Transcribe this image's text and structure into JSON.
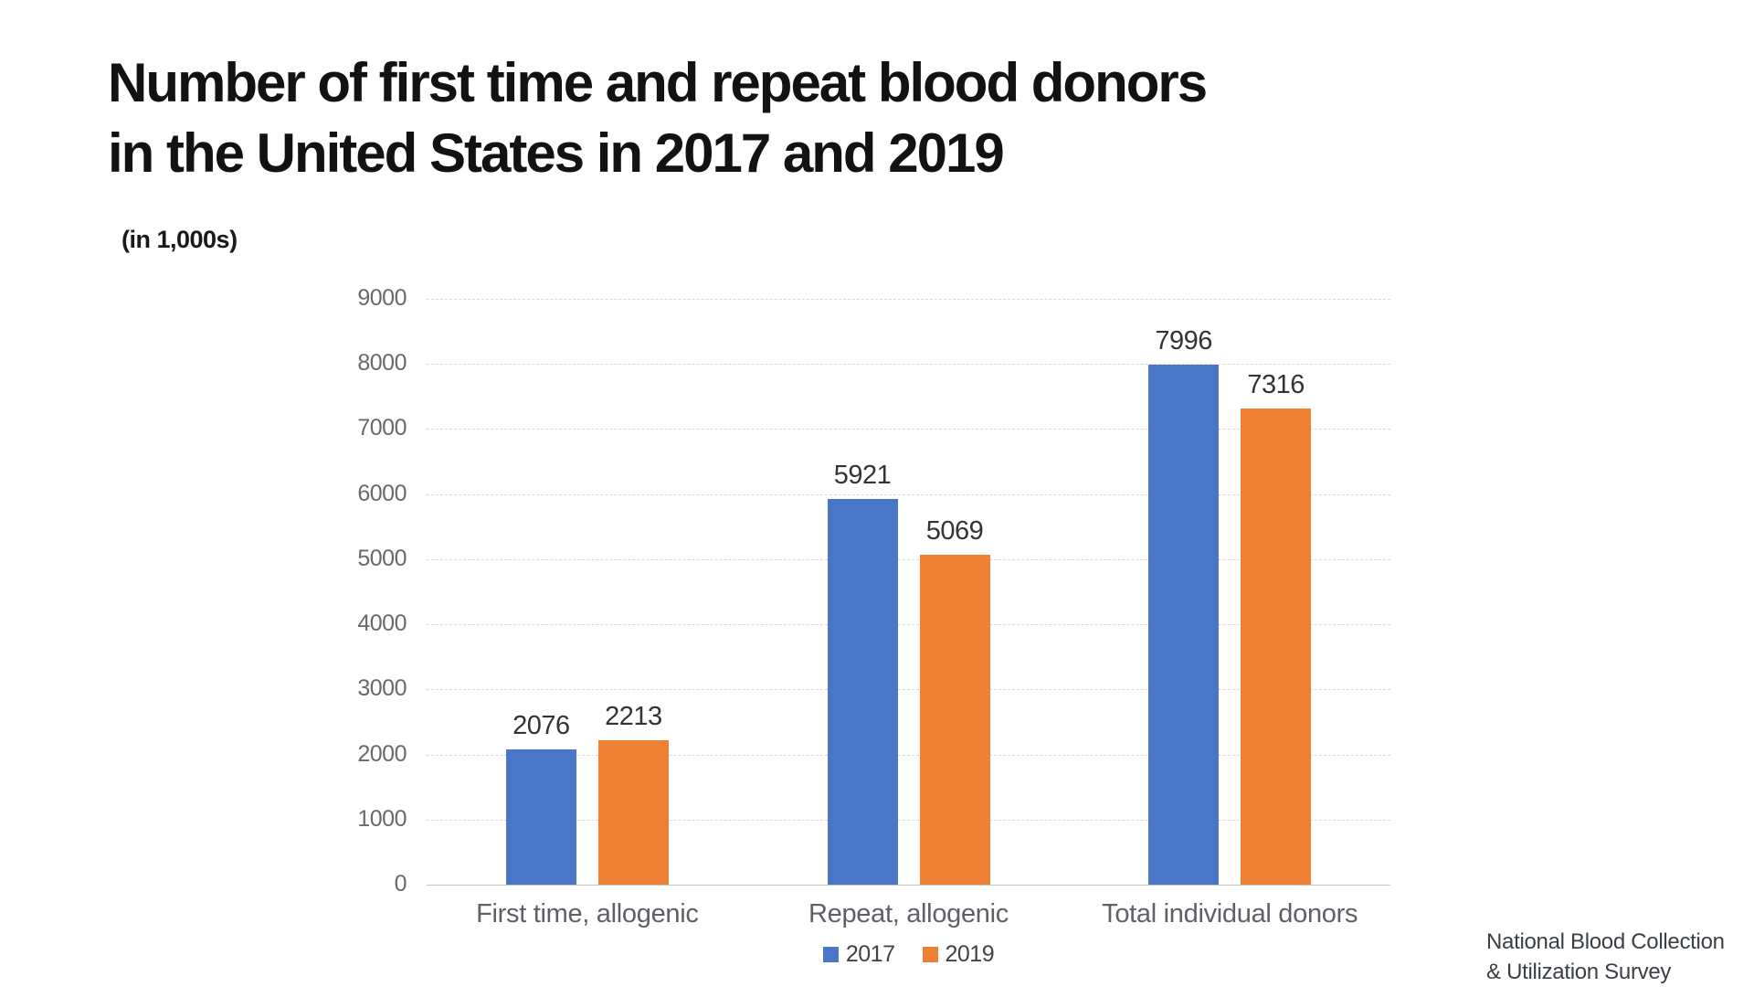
{
  "page": {
    "title_line1": "Number of first time and repeat blood donors",
    "title_line2": "in the United States in 2017 and 2019",
    "subtitle": "(in 1,000s)",
    "source_line1": "National Blood Collection",
    "source_line2": "& Utilization Survey"
  },
  "chart_data": {
    "type": "bar",
    "title": "Number of first time and repeat blood donors in the United States in 2017 and 2019",
    "unit_note": "(in 1,000s)",
    "categories": [
      "First time, allogenic",
      "Repeat, allogenic",
      "Total individual donors"
    ],
    "series": [
      {
        "name": "2017",
        "color": "#4a76c6",
        "values": [
          2076,
          5921,
          7996
        ]
      },
      {
        "name": "2019",
        "color": "#ed8033",
        "values": [
          2213,
          5069,
          7316
        ]
      }
    ],
    "ylabel": "",
    "xlabel": "",
    "ylim": [
      0,
      9000
    ],
    "ytick_interval": 1000,
    "grid": true,
    "legend_position": "bottom",
    "value_labels_shown": true,
    "colors": {
      "grid": "#d9d9d9",
      "axis_baseline": "#c6c6c6",
      "tick_text": "#696969",
      "category_text": "#5d6166",
      "value_text": "#333333",
      "title_text": "#121212"
    }
  }
}
